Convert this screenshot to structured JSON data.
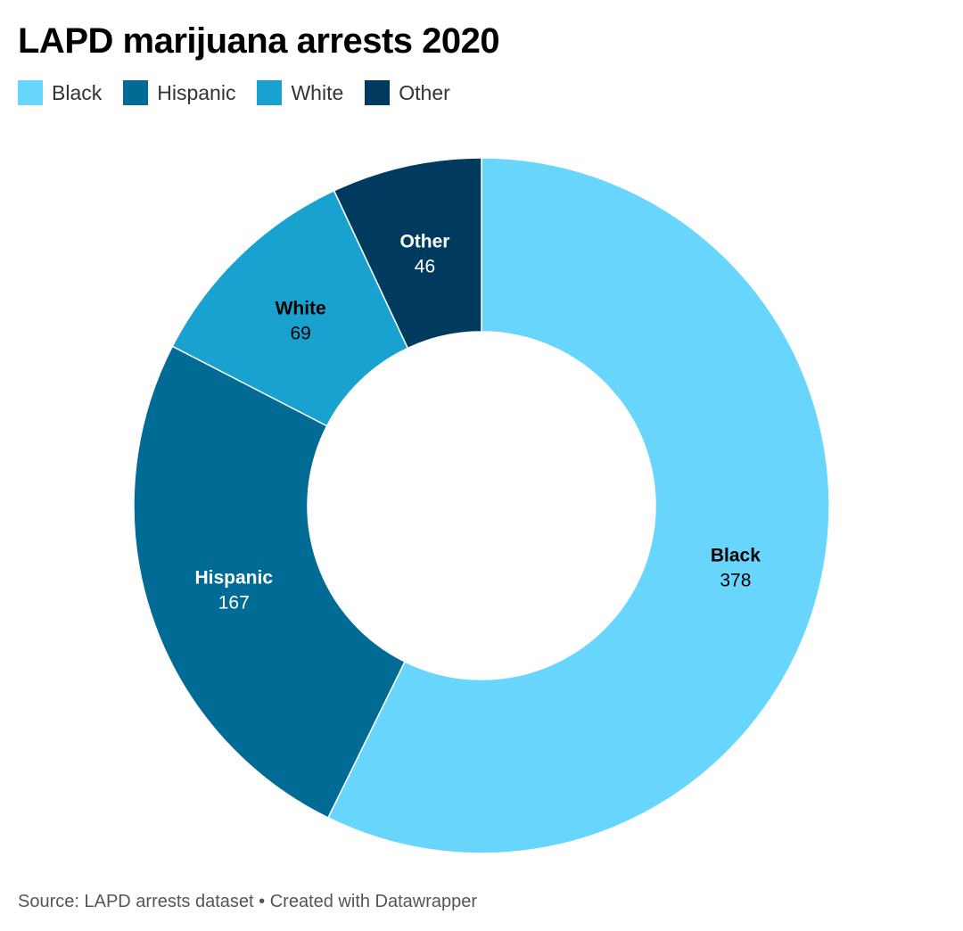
{
  "chart_data": {
    "type": "pie",
    "title": "LAPD marijuana arrests 2020",
    "categories": [
      "Black",
      "Hispanic",
      "White",
      "Other"
    ],
    "values": [
      378,
      167,
      69,
      46
    ],
    "colors": [
      "#68d6fc",
      "#006b94",
      "#19a2cf",
      "#003a5e"
    ],
    "label_colors": [
      "#000000",
      "#ffffff",
      "#000000",
      "#ffffff"
    ],
    "legend_position": "top-left",
    "donut": true
  },
  "footer": {
    "source": "Source: LAPD arrests dataset",
    "separator": "•",
    "credit": "Created with Datawrapper"
  }
}
